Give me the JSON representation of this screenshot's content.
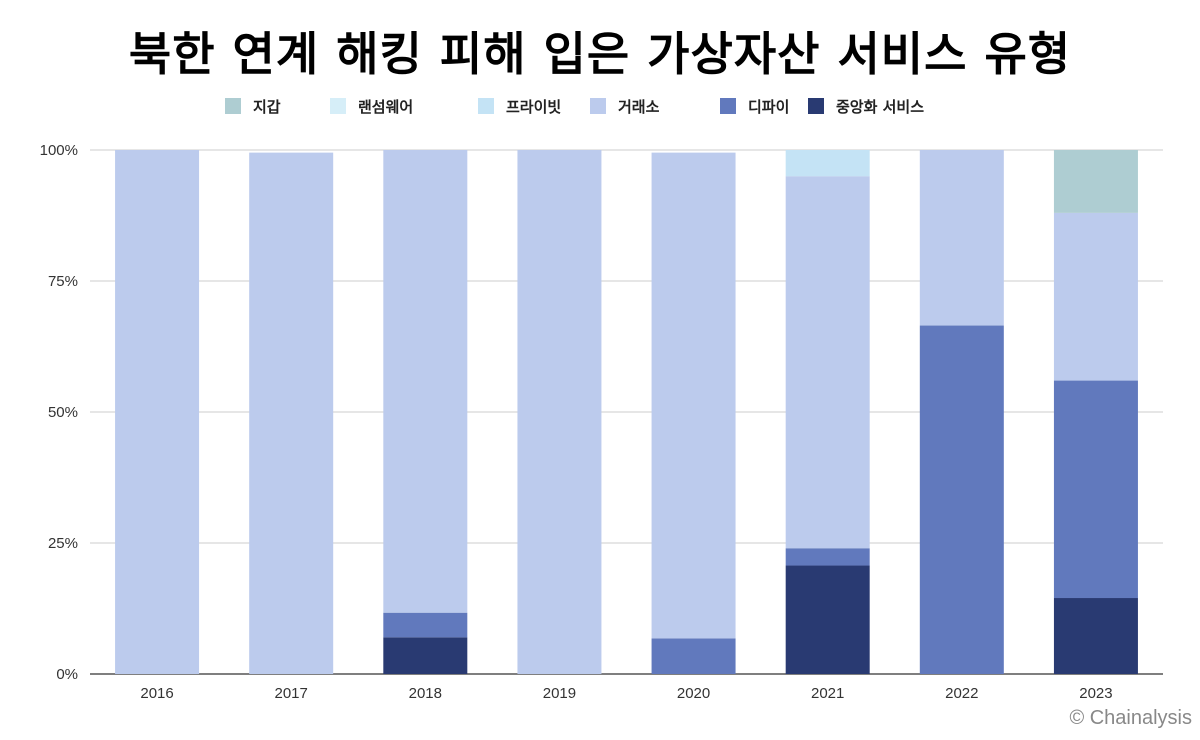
{
  "chart_data": {
    "type": "bar",
    "stacked": true,
    "title": "북한 연계 해킹 피해 입은 가상자산 서비스 유형",
    "categories": [
      "2016",
      "2017",
      "2018",
      "2019",
      "2020",
      "2021",
      "2022",
      "2023"
    ],
    "series": [
      {
        "name": "지갑",
        "color": "#aecdd2",
        "values": [
          0,
          0,
          0,
          0,
          0,
          0,
          0,
          12
        ]
      },
      {
        "name": "랜섬웨어",
        "color": "#d6eef8",
        "values": [
          0,
          0,
          0,
          0,
          0,
          0,
          0,
          0
        ]
      },
      {
        "name": "프라이빗",
        "color": "#c4e3f5",
        "values": [
          0,
          0,
          0,
          0,
          0,
          5,
          0,
          0
        ]
      },
      {
        "name": "거래소",
        "color": "#bccbed",
        "values": [
          100,
          99.5,
          88.3,
          100,
          92.7,
          71,
          33.5,
          32
        ]
      },
      {
        "name": "디파이",
        "color": "#6179bd",
        "values": [
          0,
          0,
          4.7,
          0,
          6.8,
          3.3,
          66.5,
          41.5
        ]
      },
      {
        "name": "중앙화 서비스",
        "color": "#293a72",
        "values": [
          0,
          0,
          7,
          0,
          0,
          20.7,
          0,
          14.5
        ]
      }
    ],
    "ylim": [
      0,
      100
    ],
    "yticks": [
      "0%",
      "25%",
      "50%",
      "75%",
      "100%"
    ],
    "grid": true,
    "legend": "top"
  },
  "watermark": "© Chainalysis"
}
